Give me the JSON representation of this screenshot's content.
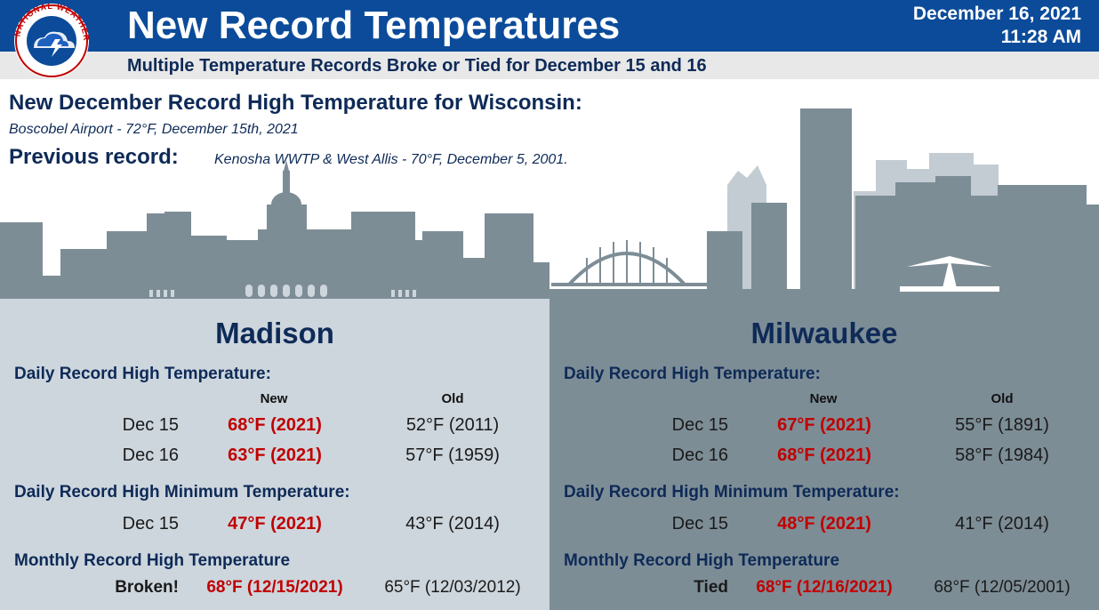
{
  "header": {
    "title": "New Record Temperatures",
    "date": "December 16, 2021",
    "time": "11:28 AM",
    "subtitle": "Multiple Temperature Records Broke or Tied for December 15 and 16",
    "logo_text": "NATIONAL WEATHER SERVICE"
  },
  "state_record": {
    "title": "New December Record High Temperature for Wisconsin:",
    "detail": "Boscobel Airport - 72°F, December 15th, 2021",
    "previous_label": "Previous record:",
    "previous_detail": "Kenosha WWTP & West Allis - 70°F, December 5, 2001."
  },
  "colors": {
    "header_blue": "#0b4b9a",
    "navy_text": "#0e2a57",
    "record_red": "#c00000",
    "madison_panel": "#cdd6dd",
    "milwaukee_panel": "#7d8d96",
    "skyline_gray": "#7d8d96",
    "skyline_light": "#c3ccd2"
  },
  "madison": {
    "name": "Madison",
    "daily_high_label": "Daily Record High Temperature:",
    "col_new": "New",
    "col_old": "Old",
    "daily_high": [
      {
        "day": "Dec 15",
        "new": "68°F (2021)",
        "old": "52°F (2011)"
      },
      {
        "day": "Dec 16",
        "new": "63°F (2021)",
        "old": "57°F (1959)"
      }
    ],
    "daily_min_label": "Daily Record High Minimum Temperature:",
    "daily_min": [
      {
        "day": "Dec 15",
        "new": "47°F (2021)",
        "old": "43°F (2014)"
      }
    ],
    "monthly_label": "Monthly Record High Temperature",
    "monthly": {
      "status": "Broken!",
      "new": "68°F (12/15/2021)",
      "old": "65°F (12/03/2012)"
    }
  },
  "milwaukee": {
    "name": "Milwaukee",
    "daily_high_label": "Daily Record High Temperature:",
    "col_new": "New",
    "col_old": "Old",
    "daily_high": [
      {
        "day": "Dec 15",
        "new": "67°F (2021)",
        "old": "55°F (1891)"
      },
      {
        "day": "Dec 16",
        "new": "68°F (2021)",
        "old": "58°F (1984)"
      }
    ],
    "daily_min_label": "Daily Record High Minimum Temperature:",
    "daily_min": [
      {
        "day": "Dec 15",
        "new": "48°F (2021)",
        "old": "41°F (2014)"
      }
    ],
    "monthly_label": "Monthly Record High Temperature",
    "monthly": {
      "status": "Tied",
      "new": "68°F (12/16/2021)",
      "old": "68°F (12/05/2001)"
    }
  }
}
